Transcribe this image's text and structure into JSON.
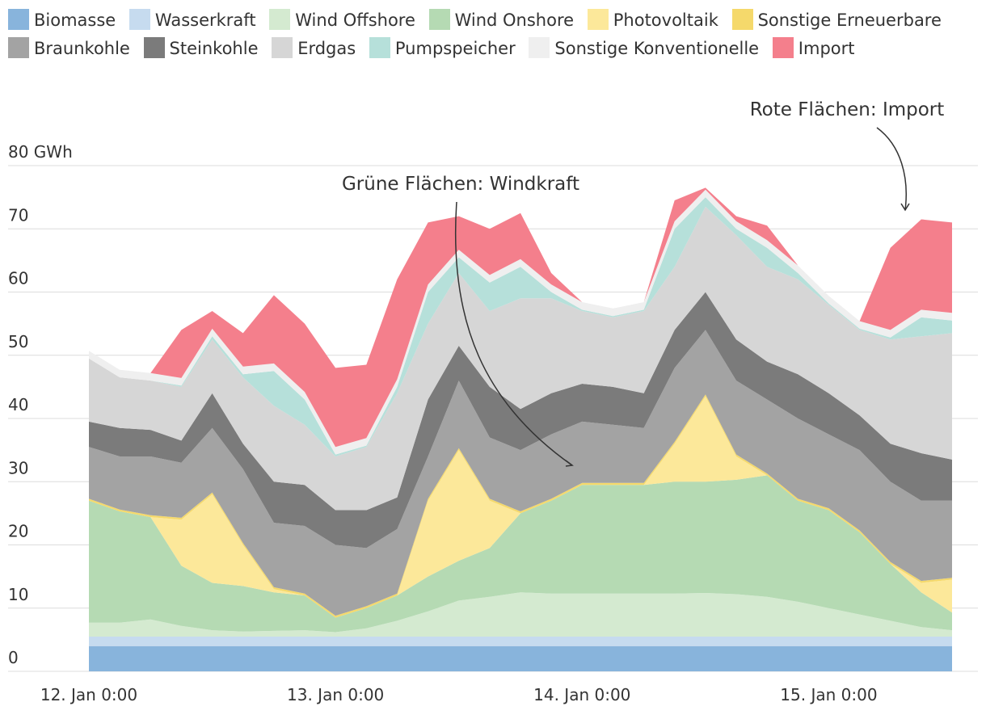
{
  "chart_data": {
    "type": "stacked_area",
    "x": [
      0,
      3,
      6,
      9,
      12,
      15,
      18,
      21,
      24,
      27,
      30,
      33,
      36,
      39,
      42,
      45,
      48,
      51,
      54,
      57,
      60,
      63,
      66,
      69,
      72,
      75,
      78,
      81,
      84
    ],
    "xlim": [
      0,
      84
    ],
    "xticks": [
      {
        "value": 0,
        "label": "12. Jan 0:00"
      },
      {
        "value": 24,
        "label": "13. Jan 0:00"
      },
      {
        "value": 48,
        "label": "14. Jan 0:00"
      },
      {
        "value": 72,
        "label": "15. Jan 0:00"
      }
    ],
    "ylim": [
      0,
      80
    ],
    "yticks": [
      0,
      10,
      20,
      30,
      40,
      50,
      60,
      70,
      {
        "value": 80,
        "label": "80 GWh"
      }
    ],
    "grid": true,
    "annotations": [
      "Grüne Flächen: Windkraft",
      "Rote Flächen: Import"
    ],
    "series": [
      {
        "name": "Biomasse",
        "color": "#88b4dc",
        "values": [
          4,
          4,
          4,
          4,
          4,
          4,
          4,
          4,
          4,
          4,
          4,
          4,
          4,
          4,
          4,
          4,
          4,
          4,
          4,
          4,
          4,
          4,
          4,
          4,
          4,
          4,
          4,
          4,
          4
        ]
      },
      {
        "name": "Wasserkraft",
        "color": "#c6dbef",
        "values": [
          1.5,
          1.5,
          1.5,
          1.5,
          1.5,
          1.5,
          1.5,
          1.5,
          1.5,
          1.5,
          1.5,
          1.5,
          1.5,
          1.5,
          1.5,
          1.5,
          1.5,
          1.5,
          1.5,
          1.5,
          1.5,
          1.5,
          1.5,
          1.5,
          1.5,
          1.5,
          1.5,
          1.5,
          1.5
        ]
      },
      {
        "name": "Wind Offshore",
        "color": "#d4ead0",
        "values": [
          2.2,
          2.2,
          2.7,
          1.7,
          1.0,
          0.8,
          0.9,
          1.0,
          0.7,
          1.3,
          2.5,
          4.0,
          5.7,
          6.3,
          7.0,
          6.8,
          6.8,
          6.8,
          6.8,
          6.8,
          6.9,
          6.7,
          6.3,
          5.5,
          4.5,
          3.5,
          2.5,
          1.5,
          1.0
        ]
      },
      {
        "name": "Wind Onshore",
        "color": "#b5dab3",
        "values": [
          19.3,
          17.6,
          16.2,
          9.5,
          7.5,
          7.2,
          6.1,
          5.5,
          2.3,
          3.2,
          4,
          5.5,
          6.3,
          7.7,
          12.5,
          14.7,
          17.2,
          17.2,
          17.2,
          17.7,
          17.6,
          18.1,
          19.2,
          16,
          15.5,
          13,
          9,
          5.5,
          2.8
        ]
      },
      {
        "name": "Photovoltaik",
        "color": "#fce89a",
        "values": [
          0,
          0,
          0,
          7.3,
          14,
          6.5,
          0.5,
          0,
          0,
          0,
          0,
          12,
          17.5,
          7.5,
          0,
          0,
          0,
          0,
          0,
          6,
          13.5,
          3.7,
          0,
          0,
          0,
          0,
          0,
          1.5,
          5.2
        ]
      },
      {
        "name": "Sonstige Erneuerbare",
        "color": "#f5d96b",
        "values": [
          0.3,
          0.3,
          0.3,
          0.3,
          0.3,
          0.3,
          0.3,
          0.3,
          0.3,
          0.3,
          0.3,
          0.3,
          0.3,
          0.3,
          0.3,
          0.3,
          0.3,
          0.3,
          0.3,
          0.3,
          0.3,
          0.3,
          0.3,
          0.3,
          0.3,
          0.3,
          0.3,
          0.3,
          0.3
        ]
      },
      {
        "name": "Braunkohle",
        "color": "#a3a3a3",
        "values": [
          8.2,
          8.4,
          9.3,
          8.7,
          10.2,
          11.7,
          10.2,
          10.7,
          11.2,
          9.2,
          10.2,
          6.7,
          10.7,
          9.7,
          9.7,
          10.2,
          9.7,
          9.2,
          8.7,
          11.7,
          10.2,
          11.7,
          11.7,
          12.7,
          11.7,
          12.7,
          12.7,
          12.7,
          12.2
        ]
      },
      {
        "name": "Steinkohle",
        "color": "#7b7b7b",
        "values": [
          4,
          4.5,
          4.2,
          3.5,
          5.5,
          4,
          6.5,
          6.5,
          5.5,
          6,
          5,
          9,
          5.5,
          8,
          6.5,
          6.5,
          6,
          6,
          5.5,
          6,
          6,
          6.5,
          6,
          7,
          6.5,
          5.5,
          6,
          7.5,
          6.5
        ]
      },
      {
        "name": "Erdgas",
        "color": "#d6d6d6",
        "values": [
          10,
          8,
          7.8,
          8.5,
          8.5,
          10.5,
          12,
          9.5,
          8.5,
          10,
          16.5,
          12,
          11.5,
          12,
          17.5,
          15,
          11.5,
          11,
          13,
          10,
          13.5,
          16.5,
          15,
          15,
          14,
          13.5,
          16.5,
          18.5,
          20
        ]
      },
      {
        "name": "Pumpspeicher",
        "color": "#b6e0da",
        "values": [
          0,
          0,
          0,
          0.2,
          0.5,
          0.5,
          5.5,
          4,
          0.3,
          0.2,
          1,
          5,
          2.5,
          4.5,
          5,
          1,
          0.2,
          0.2,
          0.2,
          6,
          1.5,
          1,
          3,
          1,
          0.2,
          0.2,
          0.3,
          3,
          2
        ]
      },
      {
        "name": "Sonstige Konventionelle",
        "color": "#efefef",
        "values": [
          1.2,
          1.2,
          1.2,
          1.2,
          1.2,
          1.2,
          1.2,
          1.2,
          1.2,
          1.2,
          1.2,
          1.2,
          1.2,
          1.2,
          1.2,
          1.2,
          1.2,
          1.2,
          1.2,
          1.2,
          1.2,
          1.2,
          1.2,
          1.2,
          1.2,
          1.2,
          1.2,
          1.2,
          1.2
        ]
      },
      {
        "name": "Import",
        "color": "#f47f8c",
        "values": [
          0,
          0,
          0,
          7.6,
          2.8,
          5.3,
          10.8,
          10.8,
          12.5,
          11.6,
          15.8,
          9.8,
          5.3,
          7.3,
          7.3,
          1.8,
          0,
          0,
          0,
          3.3,
          0.3,
          0.8,
          2.3,
          0,
          0,
          0,
          13,
          14.3,
          14.3
        ]
      }
    ]
  }
}
